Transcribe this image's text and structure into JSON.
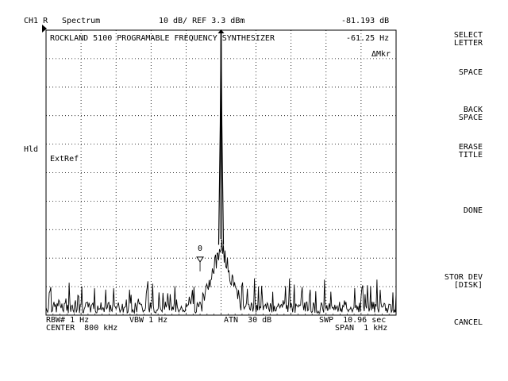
{
  "header": {
    "channel": "CH1 R",
    "mode": "Spectrum",
    "scale_ref": "10 dB/ REF 3.3 dBm",
    "marker_amplitude": "-81.193 dB"
  },
  "screen": {
    "title": "ROCKLAND 5100 PROGRAMABLE FREQUENCY SYNTHESIZER",
    "marker_freq": "-61.25 Hz",
    "marker_mode": "ΔMkr",
    "ext_ref": "ExtRef",
    "ref_marker_label": "0",
    "hold": "Hld"
  },
  "footer": {
    "rbw": "RBW# 1 Hz",
    "vbw": "VBW 1 Hz",
    "atn": "ATN  30 dB",
    "swp": "SWP  10.96 sec",
    "center": "CENTER  800 kHz",
    "span": "SPAN  1 kHz"
  },
  "softkeys": [
    {
      "id": "select-letter",
      "label": "SELECT\nLETTER"
    },
    {
      "id": "space",
      "label": "SPACE"
    },
    {
      "id": "back-space",
      "label": "BACK\nSPACE"
    },
    {
      "id": "erase-title",
      "label": "ERASE\nTITLE"
    },
    {
      "id": "done",
      "label": "DONE"
    },
    {
      "id": "stor-dev",
      "label": "STOR DEV\n[DISK]"
    },
    {
      "id": "cancel",
      "label": "CANCEL"
    }
  ],
  "chart_data": {
    "type": "line",
    "center_khz": 800,
    "span_khz": 1,
    "ref_dbm": 3.3,
    "db_per_div": 10,
    "divisions_x": 10,
    "divisions_y": 10,
    "ylim_dbm": [
      -96.7,
      3.3
    ],
    "xlim_khz": [
      799.5,
      800.5
    ],
    "grid": true,
    "peak": {
      "freq_khz": 800.0,
      "level_dbm": 3.3
    },
    "ref_marker": {
      "freq_khz": 799.94,
      "level_dbm": -78
    },
    "noise_floor_dbm": [
      -90,
      -96
    ],
    "trace_points_dbm": [
      {
        "x": 799.5,
        "y": -96
      },
      {
        "x": 799.6,
        "y": -95
      },
      {
        "x": 799.7,
        "y": -93
      },
      {
        "x": 799.75,
        "y": -90
      },
      {
        "x": 799.8,
        "y": -91
      },
      {
        "x": 799.84,
        "y": -85
      },
      {
        "x": 799.88,
        "y": -90
      },
      {
        "x": 799.9,
        "y": -88
      },
      {
        "x": 799.93,
        "y": -88
      },
      {
        "x": 799.95,
        "y": -86
      },
      {
        "x": 799.97,
        "y": -88
      },
      {
        "x": 799.99,
        "y": -70
      },
      {
        "x": 800.0,
        "y": 3.3
      },
      {
        "x": 800.01,
        "y": -70
      },
      {
        "x": 800.02,
        "y": -82
      },
      {
        "x": 800.04,
        "y": -84
      },
      {
        "x": 800.06,
        "y": -88
      },
      {
        "x": 800.08,
        "y": -90
      },
      {
        "x": 800.1,
        "y": -89
      },
      {
        "x": 800.15,
        "y": -92
      },
      {
        "x": 800.2,
        "y": -94
      },
      {
        "x": 800.3,
        "y": -95
      },
      {
        "x": 800.4,
        "y": -96
      },
      {
        "x": 800.5,
        "y": -96
      }
    ]
  }
}
